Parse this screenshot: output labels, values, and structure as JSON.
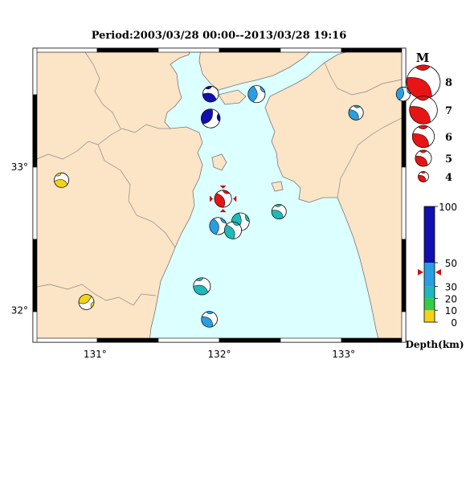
{
  "title": "Period:2003/03/28 00:00--2013/03/28 19:16",
  "map": {
    "lon_ticks": [
      {
        "value": 131,
        "label": "131°"
      },
      {
        "value": 132,
        "label": "132°"
      },
      {
        "value": 133,
        "label": "133°"
      }
    ],
    "lat_ticks": [
      {
        "value": 33,
        "label": "33°"
      },
      {
        "value": 32,
        "label": "32°"
      }
    ],
    "colors": {
      "land": "#fce4c6",
      "sea": "#dcffff",
      "coast": "#777777"
    }
  },
  "events": [
    {
      "lon": 131.93,
      "lat": 33.51,
      "mag": 4.8,
      "color": "#1010b0",
      "rot": 20,
      "main": false
    },
    {
      "lon": 132.3,
      "lat": 33.51,
      "mag": 5.0,
      "color": "#2a9ee0",
      "rot": 90,
      "main": false
    },
    {
      "lon": 131.93,
      "lat": 33.34,
      "mag": 5.3,
      "color": "#1010b0",
      "rot": 120,
      "main": false
    },
    {
      "lon": 133.1,
      "lat": 33.38,
      "mag": 4.6,
      "color": "#2a9ee0",
      "rot": 45,
      "main": false
    },
    {
      "lon": 133.48,
      "lat": 33.51,
      "mag": 4.5,
      "color": "#2a9ee0",
      "rot": 100,
      "main": false
    },
    {
      "lon": 130.73,
      "lat": 32.91,
      "mag": 4.6,
      "color": "#f2d21a",
      "rot": 10,
      "main": false
    },
    {
      "lon": 132.03,
      "lat": 32.78,
      "mag": 5.0,
      "color": "#e51515",
      "rot": 60,
      "main": true
    },
    {
      "lon": 132.48,
      "lat": 32.69,
      "mag": 4.6,
      "color": "#20b8b8",
      "rot": 30,
      "main": false
    },
    {
      "lon": 132.17,
      "lat": 32.62,
      "mag": 5.1,
      "color": "#20b8b8",
      "rot": 100,
      "main": false
    },
    {
      "lon": 131.99,
      "lat": 32.59,
      "mag": 5.0,
      "color": "#2a9ee0",
      "rot": 80,
      "main": false
    },
    {
      "lon": 132.11,
      "lat": 32.56,
      "mag": 5.0,
      "color": "#20b8b8",
      "rot": 60,
      "main": false
    },
    {
      "lon": 131.86,
      "lat": 32.17,
      "mag": 5.0,
      "color": "#20b8b8",
      "rot": 20,
      "main": false
    },
    {
      "lon": 130.93,
      "lat": 32.06,
      "mag": 4.7,
      "color": "#f2d21a",
      "rot": 150,
      "main": false
    },
    {
      "lon": 131.92,
      "lat": 31.94,
      "mag": 4.8,
      "color": "#2a9ee0",
      "rot": 40,
      "main": false
    }
  ],
  "magnitude_legend": {
    "title": "M",
    "items": [
      {
        "mag": 8,
        "label": "8"
      },
      {
        "mag": 7,
        "label": "7"
      },
      {
        "mag": 6,
        "label": "6"
      },
      {
        "mag": 5,
        "label": "5"
      },
      {
        "mag": 4,
        "label": "4"
      }
    ],
    "color": "#e51515"
  },
  "depth_scale": {
    "label": "Depth(km)",
    "ticks": [
      {
        "value": 100,
        "label": "100"
      },
      {
        "value": 50,
        "label": "50"
      },
      {
        "value": 30,
        "label": "30"
      },
      {
        "value": 20,
        "label": "20"
      },
      {
        "value": 10,
        "label": "10"
      },
      {
        "value": 0,
        "label": "0"
      }
    ],
    "bands": [
      {
        "from": 0,
        "to": 10,
        "color": "#f2d21a"
      },
      {
        "from": 10,
        "to": 20,
        "color": "#33cc44"
      },
      {
        "from": 20,
        "to": 30,
        "color": "#20b8b8"
      },
      {
        "from": 30,
        "to": 50,
        "color": "#2a9ee0"
      },
      {
        "from": 50,
        "to": 100,
        "color": "#1010b0"
      }
    ],
    "marker_depth": 42,
    "marker_color": "#cc1111"
  }
}
